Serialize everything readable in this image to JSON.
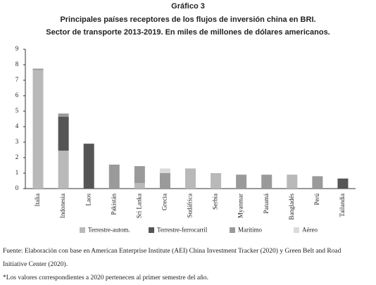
{
  "chart_data": {
    "type": "bar",
    "label": "Gráfico 3",
    "title": "Principales países receptores de los flujos de inversión china en BRI.",
    "subtitle": "Sector de transporte 2013-2019. En miles de millones de dólares americanos.",
    "categories": [
      "Italia",
      "Indonesia",
      "Laos",
      "Pakistán",
      "Sri Lanka",
      "Grecia",
      "Sudáfrica",
      "Serbia",
      "Myanmar",
      "Panamá",
      "Bangladés",
      "Perú",
      "Tailandia"
    ],
    "series": [
      {
        "name": "Terrestre-autom.",
        "color": "#b9b9b9",
        "values": [
          7.65,
          2.45,
          null,
          null,
          0.35,
          null,
          1.3,
          1.0,
          null,
          null,
          0.9,
          null,
          null
        ]
      },
      {
        "name": "Terrestre-ferrocarril",
        "color": "#555555",
        "values": [
          null,
          2.2,
          2.9,
          null,
          null,
          null,
          null,
          null,
          null,
          null,
          null,
          null,
          0.65
        ]
      },
      {
        "name": "Marítimo",
        "color": "#9a9a9a",
        "values": [
          0.1,
          0.2,
          null,
          1.55,
          1.1,
          1.0,
          null,
          null,
          0.9,
          0.9,
          null,
          0.8,
          null
        ]
      },
      {
        "name": "Aéreo",
        "color": "#dadada",
        "values": [
          null,
          null,
          null,
          null,
          null,
          0.3,
          null,
          null,
          null,
          null,
          null,
          null,
          null
        ]
      }
    ],
    "stacked": true,
    "ylim": [
      0,
      9
    ],
    "yticks": [
      0,
      1,
      2,
      3,
      4,
      5,
      6,
      7,
      8,
      9
    ],
    "grid": false,
    "legend": "bottom",
    "notes": [
      "Fuente: Elaboración con base en American Enterprise Institute (AEI) China Investment Tracker (2020) y Green Belt and Road",
      "Initiative Center (2020).",
      "*Los valores correspondientes a 2020 pertenecen al primer semestre del año."
    ]
  }
}
